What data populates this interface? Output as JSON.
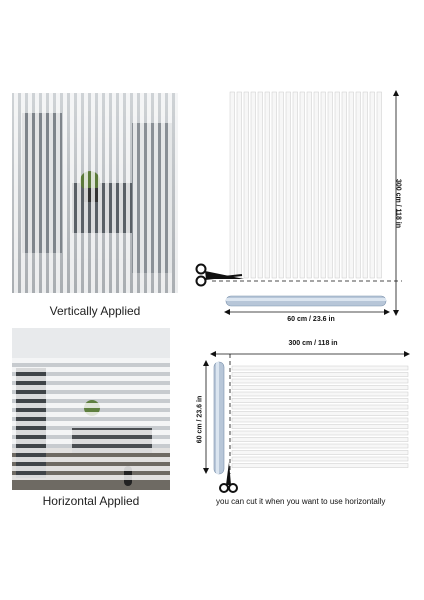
{
  "top_left": {
    "caption": "Vertically Applied"
  },
  "top_right": {
    "height_label": "300 cm / 118 in",
    "width_label": "60 cm / 23.6 in"
  },
  "bottom_left": {
    "caption": "Horizontal Applied"
  },
  "bottom_right": {
    "width_label": "300 cm / 118 in",
    "height_label": "60 cm / 23.6 in",
    "note": "you can cut it when you want to use horizontally"
  },
  "icons": [
    "scissors-icon",
    "film-roll-icon"
  ]
}
